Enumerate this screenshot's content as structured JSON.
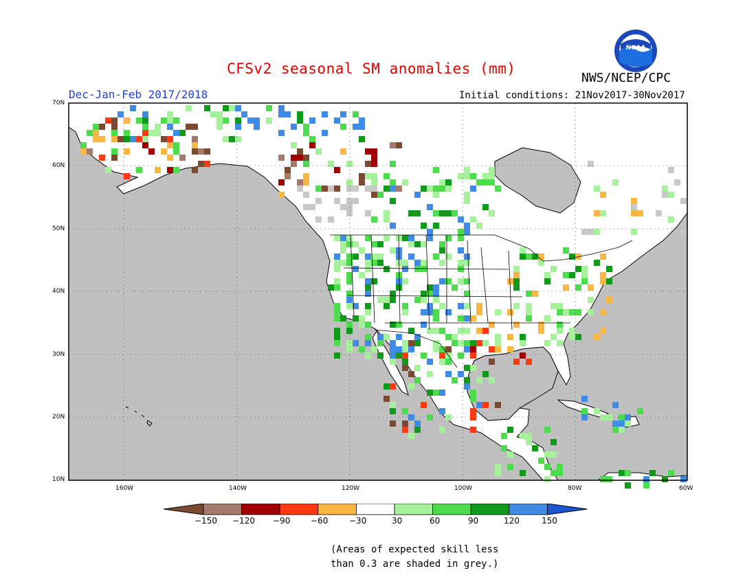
{
  "title": "CFSv2 seasonal SM anomalies (mm)",
  "season": "Dec-Jan-Feb 2017/2018",
  "initial_conditions": "Initial conditions: 21Nov2017-30Nov2017",
  "organization": "NWS/NCEP/CPC",
  "logo_text": "NOAA",
  "lat_labels": [
    "70N",
    "60N",
    "50N",
    "40N",
    "30N",
    "20N",
    "10N"
  ],
  "lon_labels": [
    "160W",
    "140W",
    "120W",
    "100W",
    "80W",
    "60W"
  ],
  "colorbar": {
    "labels": [
      "−150",
      "−120",
      "−90",
      "−60",
      "−30",
      "30",
      "60",
      "90",
      "120",
      "150"
    ],
    "colors": [
      "#7a4a33",
      "#a57a6c",
      "#a00000",
      "#ff3a10",
      "#f9b640",
      "#ffffff",
      "#a6f29a",
      "#4cdc4c",
      "#109a1a",
      "#3f8be6",
      "#1b56d0"
    ]
  },
  "note_line1": "(Areas of expected skill less",
  "note_line2": "than 0.3 are shaded in grey.)"
}
